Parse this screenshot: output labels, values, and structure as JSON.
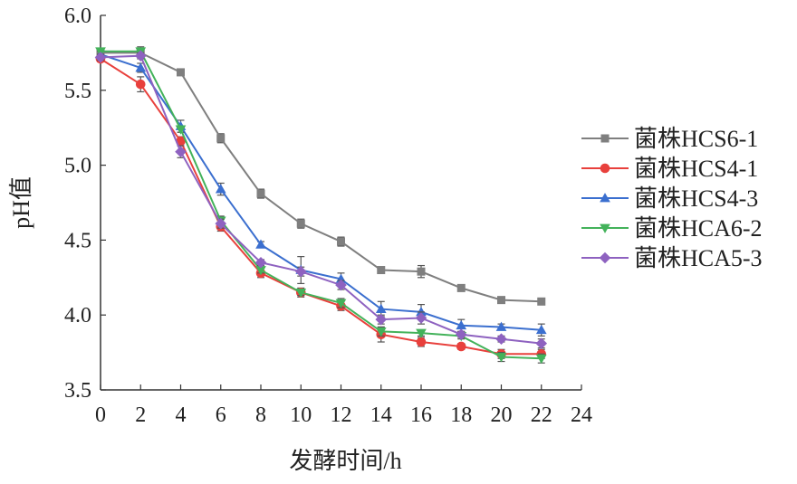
{
  "chart_data": {
    "type": "line",
    "xlabel": "发酵时间/h",
    "ylabel": "pH值",
    "xlim": [
      0,
      24
    ],
    "ylim": [
      3.5,
      6.0
    ],
    "xticks": [
      "0",
      "2",
      "4",
      "6",
      "8",
      "10",
      "12",
      "14",
      "16",
      "18",
      "20",
      "22",
      "24"
    ],
    "yticks": [
      "3.5",
      "4.0",
      "4.5",
      "5.0",
      "5.5",
      "6.0"
    ],
    "grid": false,
    "legend_position": "right",
    "x": [
      0,
      2,
      4,
      6,
      8,
      10,
      12,
      14,
      16,
      18,
      20,
      22
    ],
    "series": [
      {
        "name": "菌株HCS6-1",
        "marker": "square",
        "color": "#7f7f7f",
        "values": [
          5.75,
          5.75,
          5.62,
          5.18,
          4.81,
          4.61,
          4.49,
          4.3,
          4.29,
          4.18,
          4.1,
          4.09
        ],
        "errors": [
          0.02,
          0.02,
          0.02,
          0.03,
          0.03,
          0.03,
          0.03,
          0.02,
          0.04,
          0.02,
          0.02,
          0.02
        ]
      },
      {
        "name": "菌株HCS4-1",
        "marker": "circle",
        "color": "#e8403c",
        "values": [
          5.71,
          5.54,
          5.16,
          4.59,
          4.28,
          4.15,
          4.06,
          3.87,
          3.82,
          3.79,
          3.74,
          3.74
        ],
        "errors": [
          0.02,
          0.05,
          0.03,
          0.03,
          0.03,
          0.03,
          0.03,
          0.05,
          0.03,
          0.02,
          0.03,
          0.03
        ]
      },
      {
        "name": "菌株HCS4-3",
        "marker": "triangle-up",
        "color": "#3b6fcf",
        "values": [
          5.74,
          5.65,
          5.26,
          4.84,
          4.47,
          4.3,
          4.24,
          4.04,
          4.02,
          3.93,
          3.92,
          3.9
        ],
        "errors": [
          0.02,
          0.03,
          0.04,
          0.04,
          0.02,
          0.09,
          0.04,
          0.05,
          0.05,
          0.04,
          0.02,
          0.04
        ]
      },
      {
        "name": "菌株HCA6-2",
        "marker": "triangle-down",
        "color": "#43b25a",
        "values": [
          5.76,
          5.76,
          5.24,
          4.63,
          4.3,
          4.15,
          4.08,
          3.89,
          3.88,
          3.86,
          3.72,
          3.71
        ],
        "errors": [
          0.02,
          0.03,
          0.02,
          0.03,
          0.02,
          0.02,
          0.03,
          0.03,
          0.02,
          0.02,
          0.03,
          0.03
        ]
      },
      {
        "name": "菌株HCA5-3",
        "marker": "diamond",
        "color": "#8e62c0",
        "values": [
          5.72,
          5.73,
          5.09,
          4.61,
          4.35,
          4.29,
          4.2,
          3.97,
          3.98,
          3.87,
          3.84,
          3.81
        ],
        "errors": [
          0.02,
          0.02,
          0.04,
          0.03,
          0.02,
          0.03,
          0.03,
          0.03,
          0.04,
          0.02,
          0.02,
          0.03
        ]
      }
    ]
  }
}
